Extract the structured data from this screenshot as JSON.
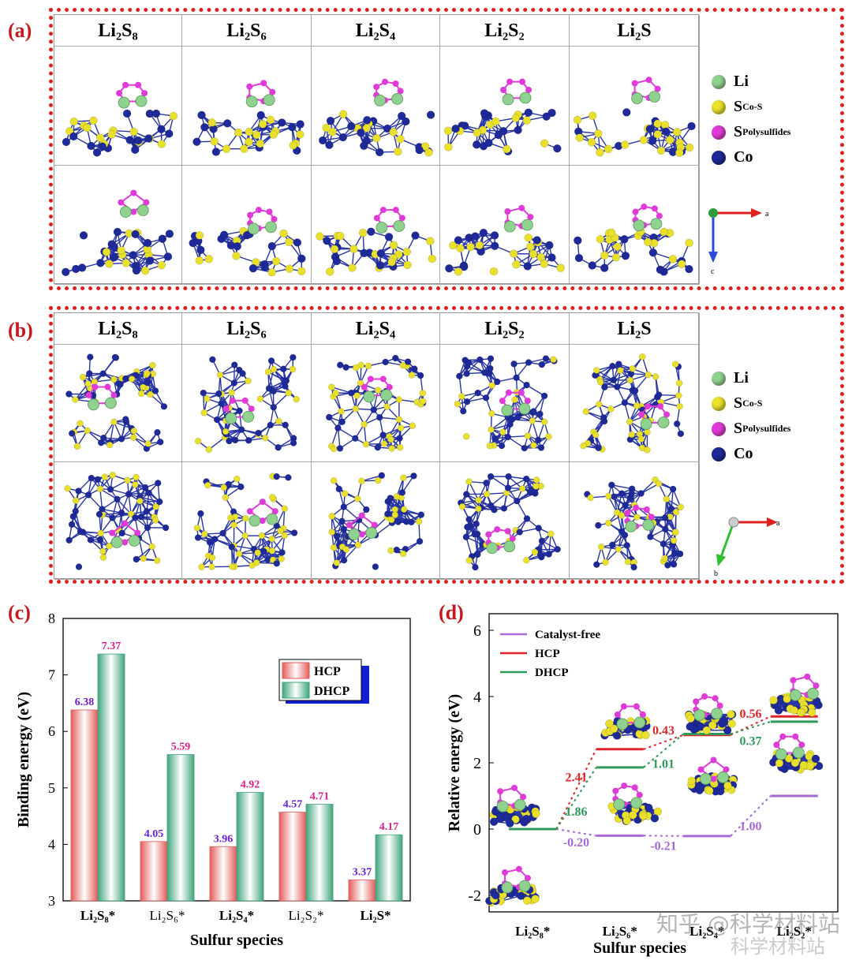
{
  "panels": {
    "a": "(a)",
    "b": "(b)",
    "c": "(c)",
    "d": "(d)"
  },
  "species_headers": [
    "Li₂S₈",
    "Li₂S₆",
    "Li₂S₄",
    "Li₂S₂",
    "Li₂S"
  ],
  "atom_legend": [
    {
      "label": "Li",
      "sub": "",
      "color": "#8fd18f"
    },
    {
      "label": "S",
      "sub": "Co-S",
      "color": "#e8e02a"
    },
    {
      "label": "S",
      "sub": "Polysulfides",
      "color": "#e03ad8"
    },
    {
      "label": "Co",
      "sub": "",
      "color": "#1e2a9a"
    }
  ],
  "axes_a": {
    "x": "a",
    "y": "c"
  },
  "axes_b": {
    "x": "a",
    "y": "b"
  },
  "watermark": "知乎 @科学材料站",
  "watermark2": "科学材料站",
  "chart_data": [
    {
      "type": "bar",
      "panel": "c",
      "categories": [
        "Li₂S₈*",
        "Li₂S₆*",
        "Li₂S₄*",
        "Li₂S₂*",
        "Li₂S*"
      ],
      "series": [
        {
          "name": "HCP",
          "values": [
            6.38,
            4.05,
            3.96,
            4.57,
            3.37
          ],
          "color": "#e45a5a"
        },
        {
          "name": "DHCP",
          "values": [
            7.37,
            5.59,
            4.92,
            4.71,
            4.17
          ],
          "color": "#3fa57a"
        }
      ],
      "value_label_colors": {
        "HCP": "#6b1fd6",
        "DHCP": "#e0208a"
      },
      "xlabel": "Sulfur species",
      "ylabel": "Binding energy (eV)",
      "ylim": [
        3,
        8
      ],
      "yticks": [
        3,
        4,
        5,
        6,
        7,
        8
      ],
      "legend": "top-right"
    },
    {
      "type": "line",
      "panel": "d",
      "categories": [
        "Li₂S₈*",
        "Li₂S₆*",
        "Li₂S₄*",
        "Li₂S₂*"
      ],
      "series": [
        {
          "name": "Catalyst-free",
          "values": [
            0,
            -0.2,
            -0.21,
            1.0
          ],
          "step_labels": [
            "-0.20",
            "-0.21",
            "1.00"
          ],
          "color": "#a56ad6"
        },
        {
          "name": "HCP",
          "values": [
            0,
            2.41,
            2.84,
            3.4
          ],
          "step_labels": [
            "2.41",
            "0.43",
            "0.56"
          ],
          "color": "#e0262a"
        },
        {
          "name": "DHCP",
          "values": [
            0,
            1.86,
            2.87,
            3.24
          ],
          "step_labels": [
            "1.86",
            "1.01",
            "0.37"
          ],
          "color": "#2e9b5a"
        }
      ],
      "xlabel": "Sulfur species",
      "ylabel": "Relative energy (eV)",
      "ylim": [
        -2.5,
        6.5
      ],
      "yticks": [
        -2,
        0,
        2,
        4,
        6
      ],
      "legend": "top-left"
    }
  ]
}
